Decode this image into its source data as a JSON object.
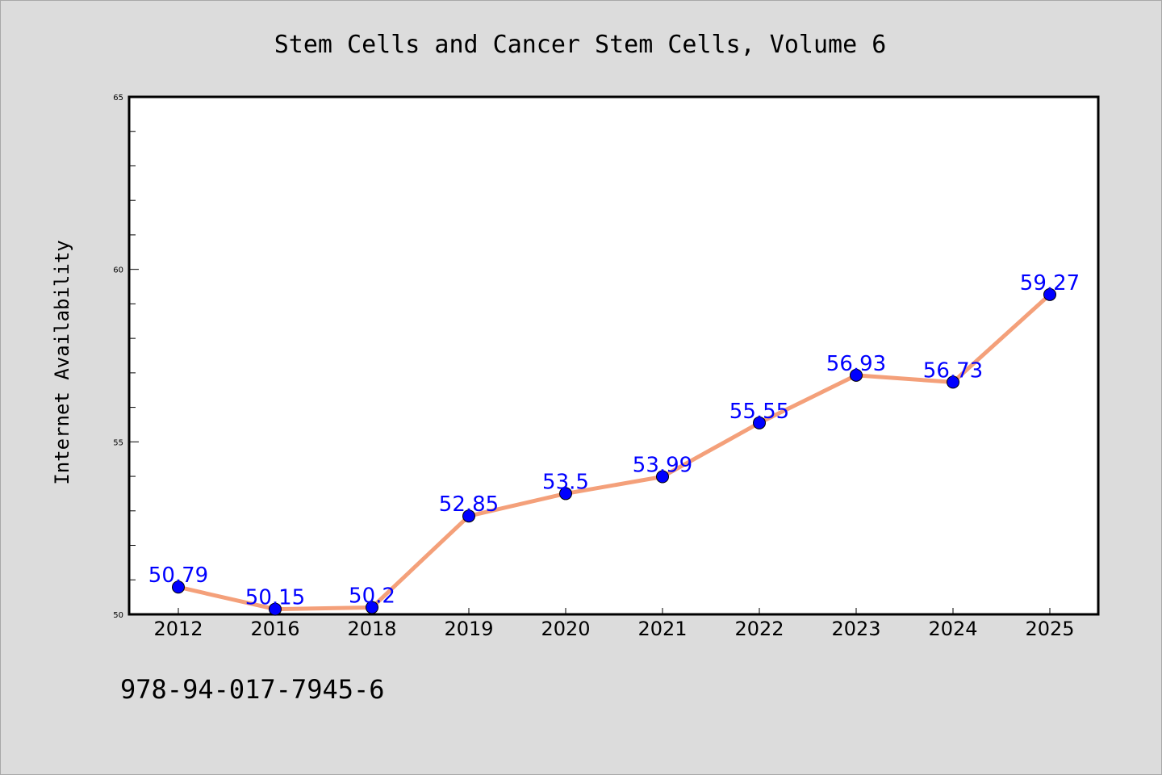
{
  "chart_data": {
    "type": "line",
    "title": "Stem Cells and Cancer Stem Cells, Volume 6",
    "xlabel": "",
    "ylabel": "Internet Availability",
    "categories": [
      "2012",
      "2016",
      "2018",
      "2019",
      "2020",
      "2021",
      "2022",
      "2023",
      "2024",
      "2025"
    ],
    "series": [
      {
        "values": [
          50.79,
          50.15,
          50.2,
          52.85,
          53.5,
          53.99,
          55.55,
          56.93,
          56.73,
          59.27
        ],
        "data_labels": [
          "50.79",
          "50.15",
          "50.2",
          "52.85",
          "53.5",
          "53.99",
          "55.55",
          "56.93",
          "56.73",
          "59.27"
        ]
      }
    ],
    "ylim": [
      50,
      65
    ],
    "yticks": [
      "50",
      "55",
      "60",
      "65"
    ],
    "grid": false,
    "line_color": "#f4a07a",
    "marker_color": "#0000ff",
    "label_color": "#0000ff"
  },
  "footer": {
    "isbn": "978-94-017-7945-6"
  }
}
